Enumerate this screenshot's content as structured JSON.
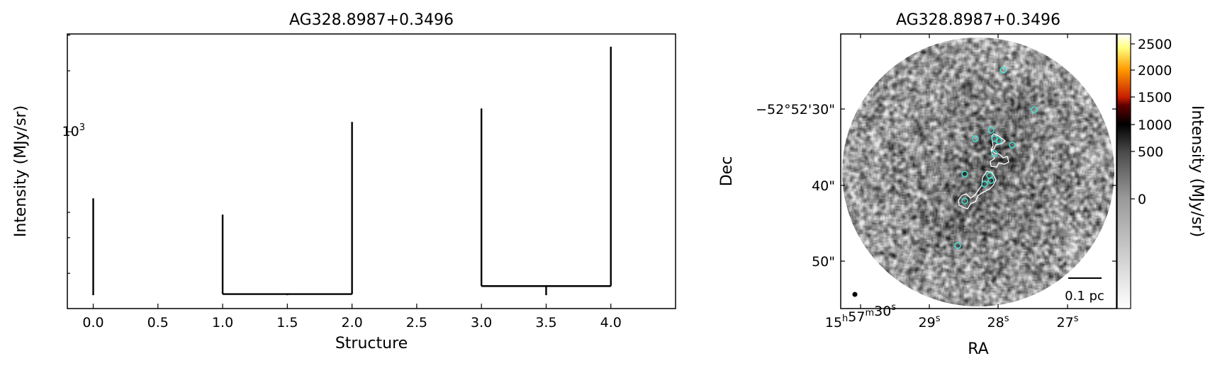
{
  "chart_data": [
    {
      "type": "dendrogram",
      "title": "AG328.8987+0.3496",
      "xlabel": "Structure",
      "ylabel": "Intensity (MJy/sr)",
      "yscale": "log",
      "xlim": [
        -0.2,
        4.5
      ],
      "ylim": [
        134,
        3040
      ],
      "xticks": [
        "0.0",
        "0.5",
        "1.0",
        "1.5",
        "2.0",
        "2.5",
        "3.0",
        "3.5",
        "4.0"
      ],
      "ytick_major_label": "10^3",
      "grid": false,
      "segments": [
        {
          "name": "leaf-0",
          "x": [
            0,
            0
          ],
          "y": [
            156,
            469
          ]
        },
        {
          "name": "leaf-1",
          "x": [
            1,
            1
          ],
          "y": [
            158,
            390
          ]
        },
        {
          "name": "leaf-2",
          "x": [
            2,
            2
          ],
          "y": [
            158,
            1119
          ]
        },
        {
          "name": "branch-1-2",
          "x": [
            1,
            2
          ],
          "y": [
            158,
            158
          ]
        },
        {
          "name": "branch-1-2-stem",
          "x": [
            1.5,
            1.5
          ],
          "y": [
            156,
            158
          ]
        },
        {
          "name": "leaf-3",
          "x": [
            3,
            3
          ],
          "y": [
            173,
            1304
          ]
        },
        {
          "name": "leaf-4",
          "x": [
            4,
            4
          ],
          "y": [
            173,
            2630
          ]
        },
        {
          "name": "branch-3-4",
          "x": [
            3,
            4
          ],
          "y": [
            173,
            173
          ]
        },
        {
          "name": "branch-3-4-stem",
          "x": [
            3.5,
            3.5
          ],
          "y": [
            156,
            173
          ]
        }
      ]
    },
    {
      "type": "image",
      "title": "AG328.8987+0.3496",
      "xlabel": "RA",
      "ylabel": "Dec",
      "xticks": [
        {
          "h": "15",
          "hs": "h",
          "m": "57",
          "ms": "m",
          "s": "30",
          "ss": "s"
        },
        {
          "s": "29",
          "ss": "s"
        },
        {
          "s": "28",
          "ss": "s"
        },
        {
          "s": "27",
          "ss": "s"
        }
      ],
      "yticks": [
        "−52°52'30\"",
        "40\"",
        "50\""
      ],
      "colorbar": {
        "label": "Intensity (MJy/sr)",
        "ticks": [
          "2500",
          "2000",
          "1500",
          "1000",
          "500",
          "0"
        ],
        "colormap": [
          "#ffffff",
          "#ffff80",
          "#ff9a00",
          "#c81e00",
          "#600000",
          "#000000",
          "#4a4a4a",
          "#9a9a9a",
          "#ffffff"
        ]
      },
      "scalebar_label": "0.1 pc",
      "source_marker_color": "#40e0d0",
      "contour_color": "#ffffff"
    }
  ]
}
